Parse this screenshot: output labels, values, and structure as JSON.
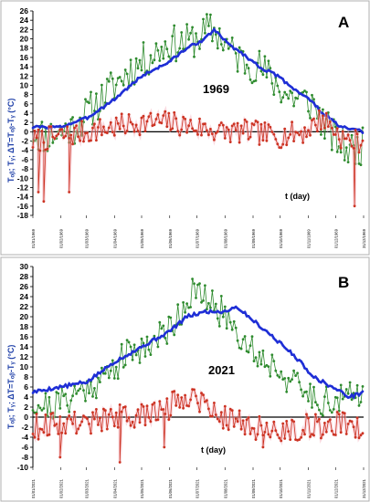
{
  "chart_data": [
    {
      "panel": "A",
      "type": "line",
      "year_label": "1969",
      "ylabel": "Tₒᵦ; Tᵧ; ΔT=Tₒᵦ-Tᵧ (°C)",
      "xlabel": "t (day)",
      "ylim": [
        -18,
        26
      ],
      "yticks": [
        -18,
        -16,
        -14,
        -12,
        -10,
        -8,
        -6,
        -4,
        -2,
        0,
        2,
        4,
        6,
        8,
        10,
        12,
        14,
        16,
        18,
        20,
        22,
        24,
        26
      ],
      "xlim": [
        0,
        365
      ],
      "x_tick_days": [
        0,
        31,
        59,
        90,
        120,
        151,
        181,
        212,
        243,
        273,
        304,
        334,
        365
      ],
      "x_tick_labels": [
        "01/01/1969",
        "01/02/1969",
        "01/03/1969",
        "01/04/1969",
        "01/05/1969",
        "01/06/1969",
        "01/07/1969",
        "01/08/1969",
        "01/09/1969",
        "01/10/1969",
        "01/11/1969",
        "01/12/1969",
        "31/12/1969"
      ],
      "series": [
        {
          "key": "green",
          "color": "#2e8b2e",
          "kind": "points",
          "anchors": [
            [
              0,
              0
            ],
            [
              15,
              -1
            ],
            [
              30,
              0
            ],
            [
              45,
              1
            ],
            [
              60,
              4
            ],
            [
              75,
              7
            ],
            [
              90,
              10
            ],
            [
              105,
              13
            ],
            [
              120,
              15
            ],
            [
              135,
              17
            ],
            [
              150,
              19
            ],
            [
              165,
              19
            ],
            [
              180,
              20
            ],
            [
              195,
              22
            ],
            [
              205,
              21
            ],
            [
              220,
              17
            ],
            [
              235,
              15
            ],
            [
              250,
              14
            ],
            [
              265,
              11
            ],
            [
              280,
              8
            ],
            [
              295,
              7
            ],
            [
              310,
              6
            ],
            [
              320,
              2
            ],
            [
              335,
              -2
            ],
            [
              350,
              -4
            ],
            [
              365,
              -3
            ]
          ],
          "noise": 4.0,
          "seed": 11
        },
        {
          "key": "blue",
          "color": "#1f2fd6",
          "kind": "smooth",
          "anchors": [
            [
              0,
              1
            ],
            [
              30,
              1
            ],
            [
              60,
              3
            ],
            [
              90,
              7
            ],
            [
              120,
              12
            ],
            [
              150,
              15
            ],
            [
              170,
              18
            ],
            [
              190,
              20
            ],
            [
              200,
              22
            ],
            [
              215,
              19
            ],
            [
              230,
              17
            ],
            [
              250,
              14
            ],
            [
              270,
              12
            ],
            [
              290,
              9
            ],
            [
              305,
              7
            ],
            [
              320,
              4
            ],
            [
              340,
              1
            ],
            [
              365,
              0
            ]
          ],
          "noise": 0.6,
          "seed": 3
        },
        {
          "key": "red",
          "color": "#cc3322",
          "kind": "points",
          "anchors": [
            [
              0,
              -2
            ],
            [
              30,
              -1
            ],
            [
              60,
              0
            ],
            [
              90,
              1
            ],
            [
              120,
              2
            ],
            [
              150,
              2
            ],
            [
              180,
              1
            ],
            [
              210,
              0
            ],
            [
              240,
              0
            ],
            [
              270,
              -1
            ],
            [
              300,
              0
            ],
            [
              320,
              3
            ],
            [
              330,
              1
            ],
            [
              345,
              -2
            ],
            [
              365,
              -2
            ]
          ],
          "noise": 2.6,
          "seed": 7,
          "outliers": [
            [
              6,
              -13
            ],
            [
              12,
              -15
            ],
            [
              40,
              -13
            ],
            [
              355,
              -16
            ]
          ]
        }
      ]
    },
    {
      "panel": "B",
      "type": "line",
      "year_label": "2021",
      "ylabel": "Tₒᵦ; Tᵧ; ΔT=Tₒᵦ-Tᵧ (°C)",
      "xlabel": "t (day)",
      "ylim": [
        -10,
        30
      ],
      "yticks": [
        -10,
        -8,
        -6,
        -4,
        -2,
        0,
        2,
        4,
        6,
        8,
        10,
        12,
        14,
        16,
        18,
        20,
        22,
        24,
        26,
        28,
        30
      ],
      "xlim": [
        0,
        365
      ],
      "x_tick_days": [
        0,
        31,
        59,
        90,
        120,
        151,
        181,
        212,
        243,
        273,
        304,
        334,
        365
      ],
      "x_tick_labels": [
        "01/01/2021",
        "01/02/2021",
        "01/03/2021",
        "01/04/2021",
        "01/05/2021",
        "01/06/2021",
        "01/07/2021",
        "01/08/2021",
        "01/09/2021",
        "01/10/2021",
        "01/11/2021",
        "01/12/2021",
        "31/12/2021"
      ],
      "series": [
        {
          "key": "green",
          "color": "#2e8b2e",
          "kind": "points",
          "anchors": [
            [
              0,
              3
            ],
            [
              20,
              2
            ],
            [
              40,
              4
            ],
            [
              60,
              6
            ],
            [
              80,
              8
            ],
            [
              100,
              12
            ],
            [
              120,
              14
            ],
            [
              140,
              16
            ],
            [
              160,
              20
            ],
            [
              175,
              25
            ],
            [
              185,
              24
            ],
            [
              200,
              22
            ],
            [
              215,
              20
            ],
            [
              230,
              16
            ],
            [
              250,
              12
            ],
            [
              270,
              10
            ],
            [
              290,
              6
            ],
            [
              310,
              4
            ],
            [
              330,
              3
            ],
            [
              350,
              4
            ],
            [
              365,
              5
            ]
          ],
          "noise": 3.2,
          "seed": 21
        },
        {
          "key": "blue",
          "color": "#1f2fd6",
          "kind": "smooth",
          "anchors": [
            [
              0,
              5
            ],
            [
              30,
              6
            ],
            [
              60,
              7
            ],
            [
              90,
              11
            ],
            [
              120,
              14
            ],
            [
              150,
              17
            ],
            [
              170,
              20
            ],
            [
              190,
              21
            ],
            [
              210,
              21
            ],
            [
              225,
              22
            ],
            [
              245,
              19
            ],
            [
              265,
              16
            ],
            [
              290,
              12
            ],
            [
              310,
              8
            ],
            [
              330,
              6
            ],
            [
              350,
              4
            ],
            [
              365,
              5
            ]
          ],
          "noise": 0.7,
          "seed": 5
        },
        {
          "key": "red",
          "color": "#cc3322",
          "kind": "points",
          "anchors": [
            [
              0,
              -2
            ],
            [
              30,
              -1
            ],
            [
              60,
              -1
            ],
            [
              90,
              0
            ],
            [
              120,
              0
            ],
            [
              150,
              2
            ],
            [
              175,
              5
            ],
            [
              200,
              1
            ],
            [
              230,
              -1
            ],
            [
              260,
              -3
            ],
            [
              290,
              -2
            ],
            [
              320,
              -2
            ],
            [
              345,
              -1
            ],
            [
              365,
              -2
            ]
          ],
          "noise": 2.6,
          "seed": 9,
          "outliers": [
            [
              30,
              -8
            ],
            [
              96,
              -9
            ],
            [
              145,
              -6
            ],
            [
              254,
              -6
            ]
          ]
        }
      ]
    }
  ],
  "panels": [
    {
      "letter": "A",
      "year": "1969",
      "xlabel": "t (day)",
      "ylabel": "Tₒᵦ; Tᵧ; ΔT=Tₒᵦ-Tᵧ (°C)"
    },
    {
      "letter": "B",
      "year": "2021",
      "xlabel": "t (day)",
      "ylabel": "Tₒᵦ; Tᵧ; ΔT=Tₒᵦ-Tᵧ (°C)"
    }
  ]
}
